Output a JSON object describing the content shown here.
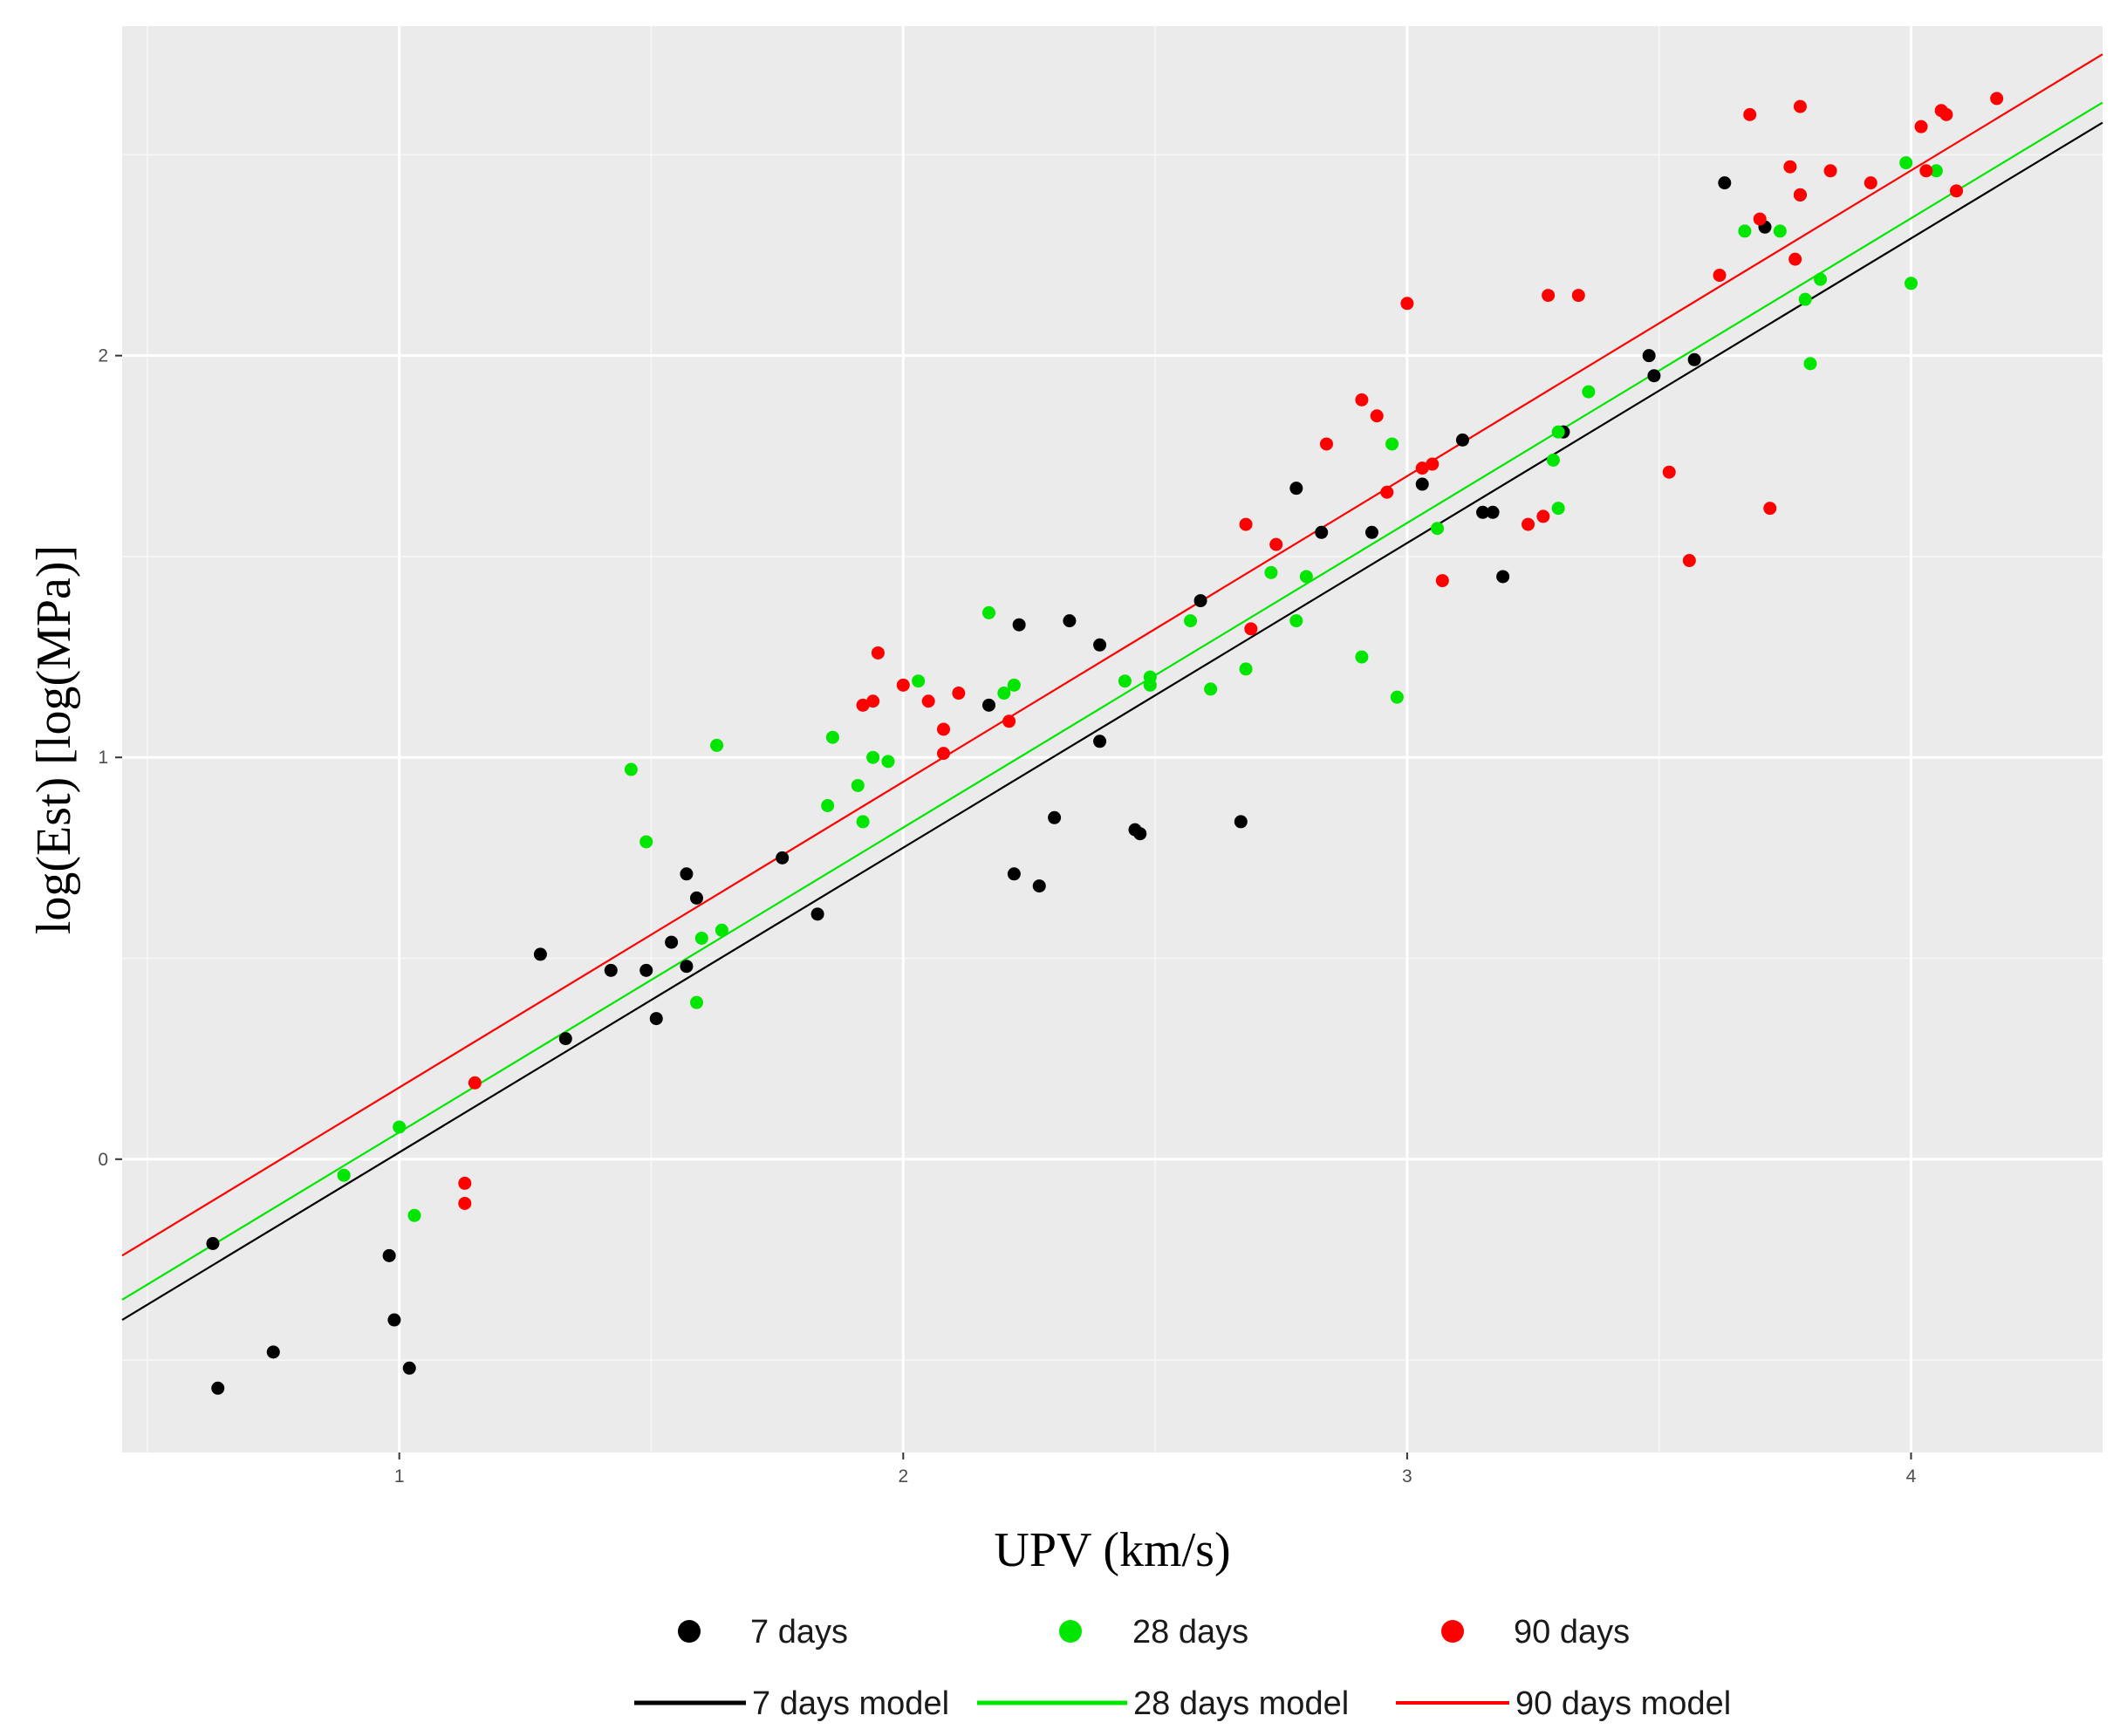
{
  "chart_data": {
    "type": "scatter",
    "xlabel": "UPV (km/s)",
    "ylabel": "log(Est) [log(MPa)]",
    "xlim": [
      0.45,
      4.38
    ],
    "ylim": [
      -0.73,
      2.82
    ],
    "x_ticks": [
      1,
      2,
      3,
      4
    ],
    "y_ticks": [
      0,
      1,
      2
    ],
    "grid": true,
    "legend_position": "bottom",
    "series": [
      {
        "name": "7 days",
        "color": "#000000",
        "points": [
          [
            0.63,
            -0.21
          ],
          [
            0.64,
            -0.57
          ],
          [
            0.75,
            -0.48
          ],
          [
            0.98,
            -0.24
          ],
          [
            0.99,
            -0.4
          ],
          [
            1.02,
            -0.52
          ],
          [
            1.28,
            0.51
          ],
          [
            1.33,
            0.3
          ],
          [
            1.42,
            0.47
          ],
          [
            1.49,
            0.47
          ],
          [
            1.51,
            0.35
          ],
          [
            1.54,
            0.54
          ],
          [
            1.57,
            0.71
          ],
          [
            1.57,
            0.48
          ],
          [
            1.59,
            0.65
          ],
          [
            1.76,
            0.75
          ],
          [
            1.83,
            0.61
          ],
          [
            2.17,
            1.13
          ],
          [
            2.22,
            0.71
          ],
          [
            2.23,
            1.33
          ],
          [
            2.27,
            0.68
          ],
          [
            2.3,
            0.85
          ],
          [
            2.33,
            1.34
          ],
          [
            2.39,
            1.04
          ],
          [
            2.39,
            1.28
          ],
          [
            2.46,
            0.82
          ],
          [
            2.47,
            0.81
          ],
          [
            2.59,
            1.39
          ],
          [
            2.67,
            0.84
          ],
          [
            2.78,
            1.67
          ],
          [
            2.83,
            1.56
          ],
          [
            2.93,
            1.56
          ],
          [
            3.03,
            1.68
          ],
          [
            3.11,
            1.79
          ],
          [
            3.15,
            1.61
          ],
          [
            3.17,
            1.61
          ],
          [
            3.19,
            1.45
          ],
          [
            3.31,
            1.81
          ],
          [
            3.48,
            2.0
          ],
          [
            3.49,
            1.95
          ],
          [
            3.57,
            1.99
          ],
          [
            3.63,
            2.43
          ],
          [
            3.71,
            2.32
          ],
          [
            3.78,
            2.4
          ]
        ]
      },
      {
        "name": "28 days",
        "color": "#00e600",
        "points": [
          [
            0.89,
            -0.04
          ],
          [
            1.0,
            0.08
          ],
          [
            1.03,
            -0.14
          ],
          [
            1.46,
            0.97
          ],
          [
            1.49,
            0.79
          ],
          [
            1.59,
            0.39
          ],
          [
            1.6,
            0.55
          ],
          [
            1.63,
            1.03
          ],
          [
            1.64,
            0.57
          ],
          [
            1.85,
            0.88
          ],
          [
            1.86,
            1.05
          ],
          [
            1.91,
            0.93
          ],
          [
            1.92,
            0.84
          ],
          [
            1.94,
            1.0
          ],
          [
            1.97,
            0.99
          ],
          [
            2.03,
            1.19
          ],
          [
            2.17,
            1.36
          ],
          [
            2.2,
            1.16
          ],
          [
            2.22,
            1.18
          ],
          [
            2.44,
            1.19
          ],
          [
            2.49,
            1.2
          ],
          [
            2.49,
            1.18
          ],
          [
            2.57,
            1.34
          ],
          [
            2.61,
            1.17
          ],
          [
            2.68,
            1.22
          ],
          [
            2.73,
            1.46
          ],
          [
            2.78,
            1.34
          ],
          [
            2.8,
            1.45
          ],
          [
            2.91,
            1.25
          ],
          [
            2.97,
            1.78
          ],
          [
            2.98,
            1.15
          ],
          [
            3.06,
            1.57
          ],
          [
            3.29,
            1.74
          ],
          [
            3.3,
            1.62
          ],
          [
            3.3,
            1.81
          ],
          [
            3.36,
            1.91
          ],
          [
            3.67,
            2.31
          ],
          [
            3.74,
            2.31
          ],
          [
            3.79,
            2.14
          ],
          [
            3.8,
            1.98
          ],
          [
            3.82,
            2.19
          ],
          [
            3.99,
            2.48
          ],
          [
            4.0,
            2.18
          ],
          [
            4.05,
            2.46
          ]
        ]
      },
      {
        "name": "90 days",
        "color": "#ff0000",
        "points": [
          [
            1.13,
            -0.06
          ],
          [
            1.13,
            -0.11
          ],
          [
            1.15,
            0.19
          ],
          [
            1.92,
            1.13
          ],
          [
            1.94,
            1.14
          ],
          [
            1.95,
            1.26
          ],
          [
            2.0,
            1.18
          ],
          [
            2.05,
            1.14
          ],
          [
            2.08,
            1.07
          ],
          [
            2.08,
            1.01
          ],
          [
            2.11,
            1.16
          ],
          [
            2.21,
            1.09
          ],
          [
            2.68,
            1.58
          ],
          [
            2.69,
            1.32
          ],
          [
            2.74,
            1.53
          ],
          [
            2.84,
            1.78
          ],
          [
            2.91,
            1.89
          ],
          [
            2.94,
            1.85
          ],
          [
            2.96,
            1.66
          ],
          [
            3.0,
            2.13
          ],
          [
            3.03,
            1.72
          ],
          [
            3.05,
            1.73
          ],
          [
            3.07,
            1.44
          ],
          [
            3.24,
            1.58
          ],
          [
            3.27,
            1.6
          ],
          [
            3.28,
            2.15
          ],
          [
            3.34,
            2.15
          ],
          [
            3.52,
            1.71
          ],
          [
            3.56,
            1.49
          ],
          [
            3.62,
            2.2
          ],
          [
            3.68,
            2.6
          ],
          [
            3.7,
            2.34
          ],
          [
            3.72,
            1.62
          ],
          [
            3.76,
            2.47
          ],
          [
            3.77,
            2.24
          ],
          [
            3.78,
            2.62
          ],
          [
            3.78,
            2.4
          ],
          [
            3.84,
            2.46
          ],
          [
            3.92,
            2.43
          ],
          [
            4.02,
            2.57
          ],
          [
            4.03,
            2.46
          ],
          [
            4.06,
            2.61
          ],
          [
            4.07,
            2.6
          ],
          [
            4.09,
            2.41
          ],
          [
            4.17,
            2.64
          ]
        ]
      }
    ],
    "models": [
      {
        "name": "7 days model",
        "color": "#000000",
        "x": [
          0.45,
          4.38
        ],
        "y": [
          -0.4,
          2.58
        ]
      },
      {
        "name": "28 days model",
        "color": "#00e600",
        "x": [
          0.45,
          4.38
        ],
        "y": [
          -0.35,
          2.63
        ]
      },
      {
        "name": "90 days model",
        "color": "#ff0000",
        "x": [
          0.45,
          4.38
        ],
        "y": [
          -0.24,
          2.75
        ]
      }
    ]
  }
}
